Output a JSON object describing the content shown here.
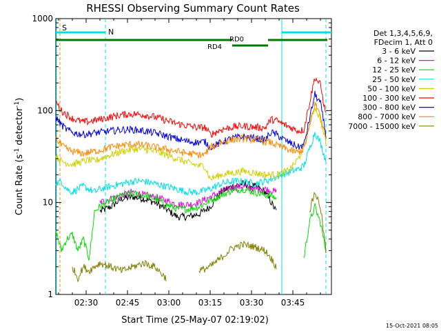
{
  "chart_data": {
    "type": "line",
    "title": "RHESSI Observing Summary Count Rates",
    "xlabel": "Start Time (25-May-07 02:19:02)",
    "ylabel": "Count Rate (s⁻¹ detector⁻¹)",
    "ylabel_main": "Count Rate (s",
    "ylabel_sup1": "-1",
    "ylabel_mid": " detector",
    "ylabel_sup2": "-1",
    "ylabel_end": ")",
    "y_scale": "log",
    "ylim": [
      1,
      1000
    ],
    "xlim_minutes": [
      0,
      100
    ],
    "x_ticks": [
      {
        "minute": 11,
        "label": "02:30"
      },
      {
        "minute": 26,
        "label": "02:45"
      },
      {
        "minute": 41,
        "label": "03:00"
      },
      {
        "minute": 56,
        "label": "03:15"
      },
      {
        "minute": 71,
        "label": "03:30"
      },
      {
        "minute": 86,
        "label": "03:45"
      }
    ],
    "y_ticks": [
      {
        "value": 1,
        "label": "1"
      },
      {
        "value": 10,
        "label": "10"
      },
      {
        "value": 100,
        "label": "100"
      },
      {
        "value": 1000,
        "label": "1000"
      }
    ],
    "legend_header": [
      "Det 1,3,4,5,6,9,",
      "FDecim 1, Att 0"
    ],
    "legend_placement": "right",
    "series": [
      {
        "name": "3 - 6 keV",
        "color": "#000000",
        "x": [
          14,
          16,
          20,
          24,
          28,
          32,
          36,
          40,
          44,
          48,
          52,
          56,
          60,
          64,
          68,
          72,
          76,
          80
        ],
        "y": [
          null,
          8,
          9,
          11,
          11.5,
          11,
          10,
          8.5,
          7,
          7,
          7.5,
          9,
          13,
          15,
          16,
          15,
          13,
          8
        ]
      },
      {
        "name": "6 - 12 keV",
        "color": "#e600e6",
        "x": [
          14,
          16,
          20,
          24,
          28,
          32,
          36,
          40,
          44,
          48,
          52,
          56,
          60,
          64,
          68,
          72,
          76,
          80,
          84,
          88,
          90,
          92,
          94,
          96,
          98
        ],
        "y": [
          null,
          10,
          11,
          12,
          13,
          12,
          11.5,
          10.5,
          9.5,
          9.5,
          10,
          11.5,
          13,
          14.5,
          15,
          14,
          14,
          13,
          null,
          null,
          null,
          null,
          null,
          null,
          null
        ]
      },
      {
        "name": "12 - 25 keV",
        "color": "#00dd00",
        "x": [
          0,
          2,
          4,
          6,
          8,
          10,
          12,
          13,
          14,
          16,
          20,
          24,
          28,
          32,
          36,
          40,
          44,
          48,
          52,
          56,
          60,
          64,
          68,
          72,
          76,
          78,
          80,
          82,
          84,
          86,
          88,
          90,
          92,
          94,
          96,
          98
        ],
        "y": [
          5,
          3,
          4,
          4.5,
          3,
          4,
          2.5,
          4,
          8,
          9,
          10.5,
          12,
          12.5,
          12,
          11,
          9.5,
          8.5,
          8.5,
          9,
          10.5,
          12,
          13.5,
          14,
          13,
          12,
          12,
          11,
          null,
          null,
          null,
          null,
          2.5,
          6,
          9,
          6,
          3
        ]
      },
      {
        "name": "25 - 50 keV",
        "color": "#00e0e0",
        "x": [
          0,
          2,
          4,
          6,
          8,
          10,
          12,
          14,
          16,
          20,
          24,
          28,
          32,
          36,
          40,
          44,
          48,
          52,
          54,
          56,
          58,
          60,
          64,
          68,
          72,
          76,
          78,
          80,
          82,
          84,
          86,
          88,
          90,
          92,
          94,
          96,
          98
        ],
        "y": [
          16,
          17,
          14,
          13,
          14,
          15,
          14,
          13,
          14,
          15,
          16,
          17,
          17,
          16,
          15,
          14,
          13,
          13,
          13.5,
          14,
          15,
          16,
          17,
          17,
          16,
          17,
          18,
          19,
          20,
          21,
          22,
          23,
          25,
          38,
          58,
          45,
          28
        ]
      },
      {
        "name": "50 - 100 keV",
        "color": "#d0d000",
        "x": [
          0,
          2,
          4,
          6,
          8,
          10,
          12,
          14,
          16,
          20,
          24,
          28,
          32,
          36,
          40,
          44,
          48,
          52,
          54,
          56,
          58,
          60,
          64,
          68,
          72,
          76,
          78,
          80,
          82,
          84,
          86,
          88,
          90,
          92,
          94,
          96,
          98
        ],
        "y": [
          32,
          28,
          27,
          26,
          27,
          28,
          29,
          28,
          30,
          33,
          36,
          38,
          38,
          36,
          33,
          30,
          27,
          25,
          25,
          18,
          19,
          20,
          21,
          22,
          21,
          20,
          20,
          20,
          21,
          22,
          25,
          30,
          40,
          70,
          110,
          80,
          45
        ]
      },
      {
        "name": "100 - 300 keV",
        "color": "#ff0000",
        "x": [
          0,
          2,
          4,
          6,
          8,
          10,
          12,
          14,
          16,
          20,
          24,
          28,
          32,
          36,
          40,
          44,
          48,
          52,
          54,
          56,
          58,
          60,
          64,
          68,
          72,
          76,
          78,
          80,
          82,
          84,
          86,
          88,
          90,
          92,
          94,
          96,
          98
        ],
        "y": [
          125,
          100,
          90,
          82,
          78,
          75,
          76,
          78,
          80,
          85,
          90,
          92,
          90,
          85,
          78,
          72,
          68,
          65,
          66,
          55,
          58,
          62,
          66,
          68,
          66,
          65,
          80,
          78,
          72,
          68,
          64,
          60,
          62,
          120,
          230,
          190,
          90
        ]
      },
      {
        "name": "300 - 800 keV",
        "color": "#0000dd",
        "x": [
          0,
          2,
          4,
          6,
          8,
          10,
          12,
          14,
          16,
          20,
          24,
          28,
          32,
          36,
          40,
          44,
          48,
          52,
          54,
          56,
          58,
          60,
          64,
          68,
          72,
          76,
          78,
          80,
          82,
          84,
          86,
          88,
          90,
          92,
          94,
          96,
          98
        ],
        "y": [
          85,
          70,
          62,
          58,
          56,
          55,
          56,
          57,
          58,
          60,
          62,
          62,
          60,
          57,
          53,
          49,
          46,
          45,
          46,
          40,
          42,
          45,
          50,
          52,
          50,
          48,
          58,
          55,
          50,
          46,
          43,
          40,
          42,
          80,
          150,
          120,
          55
        ]
      },
      {
        "name": "800 - 7000 keV",
        "color": "#ff8800",
        "x": [
          0,
          2,
          4,
          6,
          8,
          10,
          12,
          14,
          16,
          20,
          24,
          28,
          32,
          36,
          40,
          44,
          48,
          52,
          54,
          56,
          58,
          60,
          64,
          68,
          72,
          76,
          78,
          80,
          82,
          84,
          86,
          88,
          90,
          92,
          94,
          96,
          98
        ],
        "y": [
          50,
          42,
          38,
          36,
          35,
          34,
          35,
          36,
          37,
          40,
          42,
          43,
          42,
          40,
          38,
          36,
          34,
          33,
          33,
          40,
          42,
          45,
          48,
          50,
          48,
          46,
          45,
          42,
          40,
          38,
          36,
          35,
          38,
          65,
          120,
          90,
          48
        ]
      },
      {
        "name": "7000 - 15000 keV",
        "color": "#808000",
        "x": [
          0,
          4,
          6,
          8,
          10,
          12,
          14,
          16,
          20,
          24,
          28,
          32,
          36,
          40,
          44,
          48,
          52,
          56,
          60,
          64,
          68,
          72,
          76,
          78,
          80,
          84,
          88,
          92,
          94,
          96,
          98
        ],
        "y": [
          null,
          null,
          2,
          1.5,
          2,
          1.8,
          2,
          2.2,
          2,
          1.8,
          2,
          2.2,
          2,
          1.5,
          null,
          null,
          1.8,
          2,
          2.5,
          3.2,
          3.5,
          3.3,
          3,
          2.5,
          2,
          null,
          null,
          8,
          13,
          9,
          3
        ]
      }
    ],
    "annotations": [
      {
        "label": "S",
        "color": "#ff8800"
      },
      {
        "label": "N",
        "color": "#00e0e0"
      },
      {
        "label": "RD0",
        "color": "#007700"
      },
      {
        "label": "RD4",
        "color": "#007700"
      }
    ],
    "footer_timestamp": "15-Oct-2021 08:05"
  }
}
